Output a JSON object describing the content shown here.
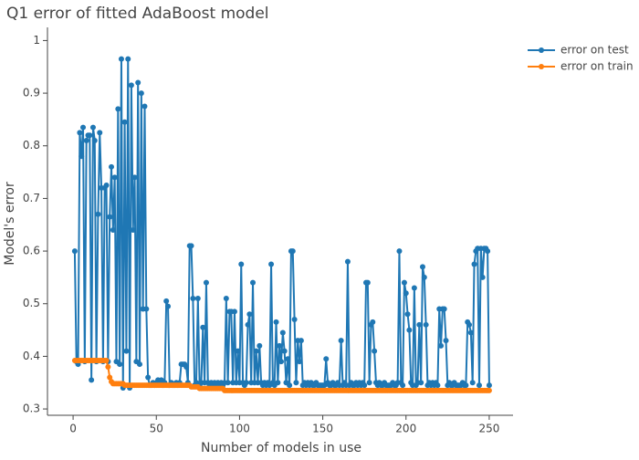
{
  "chart_data": {
    "type": "line",
    "title": "Q1 error of fitted AdaBoost model",
    "x_label": "Number of models in use",
    "y_label": "Model's error",
    "grid": false,
    "legend_position": "right",
    "xlim": [
      -15.4,
      264.3
    ],
    "xticks": [
      0,
      50,
      100,
      150,
      200,
      250
    ],
    "ylim": [
      0.288,
      1.025
    ],
    "yticks": [
      0.3,
      0.4,
      0.5,
      0.6,
      0.7,
      0.8,
      0.9,
      1
    ],
    "x": [
      1,
      2,
      3,
      4,
      5,
      6,
      7,
      8,
      9,
      10,
      11,
      12,
      13,
      14,
      15,
      16,
      17,
      18,
      19,
      20,
      21,
      22,
      23,
      24,
      25,
      26,
      27,
      28,
      29,
      30,
      31,
      32,
      33,
      34,
      35,
      36,
      37,
      38,
      39,
      40,
      41,
      42,
      43,
      44,
      45,
      46,
      47,
      48,
      49,
      50,
      51,
      52,
      53,
      54,
      55,
      56,
      57,
      58,
      59,
      60,
      61,
      62,
      63,
      64,
      65,
      66,
      67,
      68,
      69,
      70,
      71,
      72,
      73,
      74,
      75,
      76,
      77,
      78,
      79,
      80,
      81,
      82,
      83,
      84,
      85,
      86,
      87,
      88,
      89,
      90,
      91,
      92,
      93,
      94,
      95,
      96,
      97,
      98,
      99,
      100,
      101,
      102,
      103,
      104,
      105,
      106,
      107,
      108,
      109,
      110,
      111,
      112,
      113,
      114,
      115,
      116,
      117,
      118,
      119,
      120,
      121,
      122,
      123,
      124,
      125,
      126,
      127,
      128,
      129,
      130,
      131,
      132,
      133,
      134,
      135,
      136,
      137,
      138,
      139,
      140,
      141,
      142,
      143,
      144,
      145,
      146,
      147,
      148,
      149,
      150,
      151,
      152,
      153,
      154,
      155,
      156,
      157,
      158,
      159,
      160,
      161,
      162,
      163,
      164,
      165,
      166,
      167,
      168,
      169,
      170,
      171,
      172,
      173,
      174,
      175,
      176,
      177,
      178,
      179,
      180,
      181,
      182,
      183,
      184,
      185,
      186,
      187,
      188,
      189,
      190,
      191,
      192,
      193,
      194,
      195,
      196,
      197,
      198,
      199,
      200,
      201,
      202,
      203,
      204,
      205,
      206,
      207,
      208,
      209,
      210,
      211,
      212,
      213,
      214,
      215,
      216,
      217,
      218,
      219,
      220,
      221,
      222,
      223,
      224,
      225,
      226,
      227,
      228,
      229,
      230,
      231,
      232,
      233,
      234,
      235,
      236,
      237,
      238,
      239,
      240,
      241,
      242,
      243,
      244,
      245,
      246,
      247,
      248,
      249,
      250
    ],
    "series": [
      {
        "name": "error on test",
        "color": "#1f77b4",
        "values": [
          0.6,
          0.39,
          0.385,
          0.825,
          0.78,
          0.835,
          0.39,
          0.81,
          0.82,
          0.82,
          0.355,
          0.835,
          0.81,
          0.39,
          0.67,
          0.825,
          0.72,
          0.39,
          0.72,
          0.725,
          0.39,
          0.665,
          0.76,
          0.64,
          0.74,
          0.39,
          0.87,
          0.385,
          0.965,
          0.34,
          0.845,
          0.41,
          0.965,
          0.34,
          0.915,
          0.64,
          0.74,
          0.39,
          0.92,
          0.385,
          0.9,
          0.49,
          0.875,
          0.49,
          0.36,
          0.345,
          0.345,
          0.35,
          0.345,
          0.35,
          0.355,
          0.35,
          0.355,
          0.345,
          0.35,
          0.505,
          0.495,
          0.345,
          0.35,
          0.345,
          0.345,
          0.35,
          0.345,
          0.35,
          0.385,
          0.385,
          0.385,
          0.38,
          0.35,
          0.61,
          0.61,
          0.51,
          0.345,
          0.35,
          0.51,
          0.345,
          0.35,
          0.455,
          0.35,
          0.54,
          0.35,
          0.345,
          0.35,
          0.345,
          0.35,
          0.345,
          0.35,
          0.345,
          0.35,
          0.345,
          0.35,
          0.51,
          0.35,
          0.485,
          0.485,
          0.35,
          0.485,
          0.35,
          0.41,
          0.35,
          0.575,
          0.35,
          0.345,
          0.35,
          0.46,
          0.48,
          0.35,
          0.54,
          0.35,
          0.41,
          0.35,
          0.42,
          0.35,
          0.345,
          0.35,
          0.345,
          0.35,
          0.345,
          0.575,
          0.35,
          0.345,
          0.465,
          0.35,
          0.42,
          0.39,
          0.445,
          0.41,
          0.35,
          0.395,
          0.345,
          0.6,
          0.6,
          0.47,
          0.35,
          0.43,
          0.39,
          0.43,
          0.345,
          0.35,
          0.345,
          0.35,
          0.345,
          0.35,
          0.345,
          0.345,
          0.35,
          0.345,
          0.345,
          0.345,
          0.345,
          0.345,
          0.395,
          0.35,
          0.345,
          0.345,
          0.35,
          0.345,
          0.345,
          0.35,
          0.345,
          0.43,
          0.345,
          0.35,
          0.345,
          0.58,
          0.345,
          0.35,
          0.345,
          0.345,
          0.35,
          0.345,
          0.35,
          0.345,
          0.35,
          0.345,
          0.54,
          0.54,
          0.35,
          0.46,
          0.465,
          0.41,
          0.35,
          0.345,
          0.35,
          0.345,
          0.345,
          0.35,
          0.345,
          0.345,
          0.345,
          0.345,
          0.35,
          0.345,
          0.345,
          0.35,
          0.6,
          0.35,
          0.345,
          0.54,
          0.52,
          0.48,
          0.45,
          0.35,
          0.345,
          0.53,
          0.345,
          0.35,
          0.46,
          0.35,
          0.57,
          0.55,
          0.46,
          0.345,
          0.35,
          0.345,
          0.35,
          0.345,
          0.35,
          0.345,
          0.49,
          0.42,
          0.49,
          0.49,
          0.43,
          0.345,
          0.35,
          0.345,
          0.345,
          0.35,
          0.345,
          0.345,
          0.345,
          0.345,
          0.35,
          0.345,
          0.345,
          0.465,
          0.46,
          0.445,
          0.35,
          0.575,
          0.6,
          0.605,
          0.345,
          0.605,
          0.55,
          0.605,
          0.605,
          0.6,
          0.345
        ]
      },
      {
        "name": "error on train",
        "color": "#ff7f0e",
        "values": [
          0.392,
          0.392,
          0.392,
          0.392,
          0.392,
          0.392,
          0.392,
          0.392,
          0.392,
          0.392,
          0.392,
          0.392,
          0.392,
          0.392,
          0.392,
          0.392,
          0.392,
          0.392,
          0.392,
          0.392,
          0.38,
          0.36,
          0.352,
          0.348,
          0.348,
          0.348,
          0.348,
          0.348,
          0.348,
          0.348,
          0.345,
          0.345,
          0.345,
          0.345,
          0.345,
          0.345,
          0.345,
          0.345,
          0.345,
          0.345,
          0.345,
          0.345,
          0.345,
          0.345,
          0.345,
          0.345,
          0.345,
          0.345,
          0.345,
          0.345,
          0.345,
          0.345,
          0.345,
          0.345,
          0.345,
          0.345,
          0.345,
          0.345,
          0.345,
          0.345,
          0.345,
          0.345,
          0.345,
          0.345,
          0.345,
          0.345,
          0.345,
          0.345,
          0.345,
          0.345,
          0.342,
          0.342,
          0.342,
          0.342,
          0.342,
          0.339,
          0.339,
          0.339,
          0.339,
          0.339,
          0.339,
          0.339,
          0.339,
          0.339,
          0.339,
          0.339,
          0.339,
          0.339,
          0.339,
          0.339,
          0.335,
          0.335,
          0.335,
          0.335,
          0.335,
          0.335,
          0.335,
          0.335,
          0.335,
          0.335,
          0.335,
          0.335,
          0.335,
          0.335,
          0.335,
          0.335,
          0.335,
          0.335,
          0.335,
          0.335,
          0.335,
          0.335,
          0.335,
          0.335,
          0.335,
          0.335,
          0.335,
          0.335,
          0.335,
          0.335,
          0.335,
          0.335,
          0.335,
          0.335,
          0.335,
          0.335,
          0.335,
          0.335,
          0.335,
          0.335,
          0.335,
          0.335,
          0.335,
          0.335,
          0.335,
          0.335,
          0.335,
          0.335,
          0.335,
          0.335,
          0.335,
          0.335,
          0.335,
          0.335,
          0.335,
          0.335,
          0.335,
          0.335,
          0.335,
          0.335,
          0.335,
          0.335,
          0.335,
          0.335,
          0.335,
          0.335,
          0.335,
          0.335,
          0.335,
          0.335,
          0.335,
          0.335,
          0.335,
          0.335,
          0.335,
          0.335,
          0.335,
          0.335,
          0.335,
          0.335,
          0.335,
          0.335,
          0.335,
          0.335,
          0.335,
          0.335,
          0.335,
          0.335,
          0.335,
          0.335,
          0.335,
          0.335,
          0.335,
          0.335,
          0.335,
          0.335,
          0.335,
          0.335,
          0.335,
          0.335,
          0.335,
          0.335,
          0.335,
          0.335,
          0.335,
          0.335,
          0.335,
          0.335,
          0.335,
          0.335,
          0.335,
          0.335,
          0.335,
          0.335,
          0.335,
          0.335,
          0.335,
          0.335,
          0.335,
          0.335,
          0.335,
          0.335,
          0.335,
          0.335,
          0.335,
          0.335,
          0.335,
          0.335,
          0.335,
          0.335,
          0.335,
          0.335,
          0.335,
          0.335,
          0.335,
          0.335,
          0.335,
          0.335,
          0.335,
          0.335,
          0.335,
          0.335,
          0.335,
          0.335,
          0.335,
          0.335,
          0.335,
          0.335,
          0.335,
          0.335,
          0.335,
          0.335,
          0.335,
          0.335,
          0.335,
          0.335,
          0.335,
          0.335,
          0.335,
          0.335
        ]
      }
    ]
  }
}
